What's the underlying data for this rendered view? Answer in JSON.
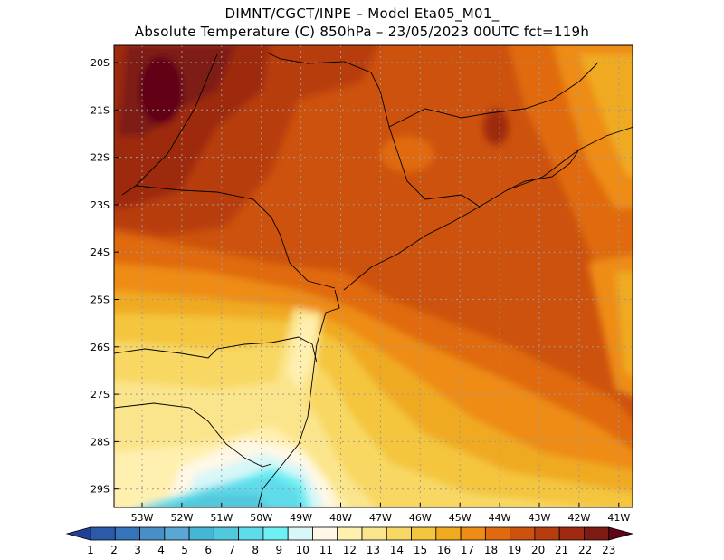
{
  "header": {
    "line1": "DIMNT/CGCT/INPE –  Model Eta05_M01_",
    "line2": "Absolute Temperature (C) 850hPa –  23/05/2023 00UTC fct=119h"
  },
  "map": {
    "lat_labels": [
      "20S",
      "21S",
      "22S",
      "23S",
      "24S",
      "25S",
      "26S",
      "27S",
      "28S",
      "29S"
    ],
    "lon_labels": [
      "53W",
      "52W",
      "51W",
      "50W",
      "49W",
      "48W",
      "47W",
      "46W",
      "45W",
      "44W",
      "43W",
      "42W",
      "41W"
    ],
    "gridlines": "dotted"
  },
  "colorbar": {
    "labels": [
      "1",
      "2",
      "3",
      "4",
      "5",
      "6",
      "7",
      "8",
      "9",
      "10",
      "11",
      "12",
      "13",
      "14",
      "15",
      "16",
      "17",
      "18",
      "19",
      "20",
      "21",
      "22",
      "23"
    ],
    "colors": [
      "#233f96",
      "#2b5aa8",
      "#3574b8",
      "#4a8ec6",
      "#5aa6d4",
      "#45b6d6",
      "#52c8dc",
      "#5fdcea",
      "#6ff0f4",
      "#d7f7f8",
      "#fff8e6",
      "#fff0b0",
      "#fbe58c",
      "#f8d864",
      "#f4c53e",
      "#f0aa20",
      "#ee8c18",
      "#e06a10",
      "#cd520e",
      "#b83d0e",
      "#9e2a10",
      "#7e1a14",
      "#620418"
    ]
  }
}
